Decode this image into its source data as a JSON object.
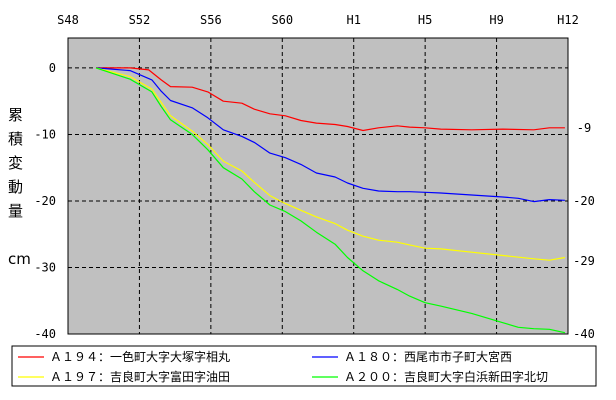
{
  "chart_data": {
    "type": "line",
    "x_ticks": [
      "S48",
      "S52",
      "S56",
      "S60",
      "H1",
      "H5",
      "H9",
      "H12"
    ],
    "y_ticks": [
      0,
      -10,
      -20,
      -30,
      -40
    ],
    "ylim": [
      -40,
      4.5
    ],
    "ylabel_chars": [
      "累",
      "積",
      "変",
      "動",
      "量"
    ],
    "yunit": "cm",
    "grid": true,
    "plot_bg": "#c0c0c0",
    "right_annotations": [
      {
        "y": -9,
        "label": "-9"
      },
      {
        "y": -20,
        "label": "-20"
      },
      {
        "y": -29,
        "label": "-29"
      },
      {
        "y": -40,
        "label": "-40"
      }
    ],
    "series": [
      {
        "name": "Ａ１９４：一色町大字大塚字相丸",
        "color": "#ff0000",
        "points": [
          [
            0.9,
            0
          ],
          [
            2.0,
            0.0
          ],
          [
            2.6,
            -0.3
          ],
          [
            3.0,
            -1.8
          ],
          [
            3.3,
            -2.8
          ],
          [
            4.0,
            -2.9
          ],
          [
            4.5,
            -3.6
          ],
          [
            5.0,
            -5.0
          ],
          [
            5.6,
            -5.3
          ],
          [
            6.0,
            -6.2
          ],
          [
            6.5,
            -6.9
          ],
          [
            7.0,
            -7.2
          ],
          [
            7.5,
            -7.9
          ],
          [
            8.0,
            -8.3
          ],
          [
            8.6,
            -8.5
          ],
          [
            9.0,
            -8.8
          ],
          [
            9.5,
            -9.4
          ],
          [
            10.0,
            -9.0
          ],
          [
            10.6,
            -8.7
          ],
          [
            11.0,
            -8.9
          ],
          [
            11.5,
            -9.0
          ],
          [
            12.0,
            -9.2
          ],
          [
            13.0,
            -9.3
          ],
          [
            14.0,
            -9.2
          ],
          [
            15.0,
            -9.3
          ],
          [
            15.5,
            -9.0
          ],
          [
            16.0,
            -9.0
          ]
        ]
      },
      {
        "name": "Ａ１８０：西尾市市子町大宮西",
        "color": "#0000ff",
        "points": [
          [
            0.9,
            0
          ],
          [
            2.0,
            -0.4
          ],
          [
            2.7,
            -1.8
          ],
          [
            3.0,
            -3.5
          ],
          [
            3.3,
            -4.9
          ],
          [
            4.0,
            -6.0
          ],
          [
            4.5,
            -7.5
          ],
          [
            5.0,
            -9.3
          ],
          [
            5.6,
            -10.3
          ],
          [
            6.0,
            -11.2
          ],
          [
            6.5,
            -12.8
          ],
          [
            7.0,
            -13.5
          ],
          [
            7.5,
            -14.5
          ],
          [
            8.0,
            -15.8
          ],
          [
            8.6,
            -16.4
          ],
          [
            9.0,
            -17.3
          ],
          [
            9.5,
            -18.1
          ],
          [
            10.0,
            -18.5
          ],
          [
            10.6,
            -18.6
          ],
          [
            11.0,
            -18.6
          ],
          [
            11.5,
            -18.7
          ],
          [
            12.0,
            -18.8
          ],
          [
            13.0,
            -19.1
          ],
          [
            14.0,
            -19.4
          ],
          [
            14.5,
            -19.6
          ],
          [
            15.0,
            -20.1
          ],
          [
            15.5,
            -19.8
          ],
          [
            16.0,
            -19.9
          ]
        ]
      },
      {
        "name": "Ａ１９７：吉良町大字富田字油田",
        "color": "#ffff00",
        "points": [
          [
            0.9,
            0
          ],
          [
            2.0,
            -1.3
          ],
          [
            2.7,
            -3.2
          ],
          [
            3.0,
            -5.2
          ],
          [
            3.3,
            -7.2
          ],
          [
            4.0,
            -9.5
          ],
          [
            4.5,
            -11.5
          ],
          [
            5.0,
            -14.0
          ],
          [
            5.6,
            -15.5
          ],
          [
            6.0,
            -17.2
          ],
          [
            6.5,
            -19.2
          ],
          [
            7.0,
            -20.4
          ],
          [
            7.5,
            -21.4
          ],
          [
            8.0,
            -22.4
          ],
          [
            8.6,
            -23.4
          ],
          [
            9.0,
            -24.4
          ],
          [
            9.5,
            -25.3
          ],
          [
            10.0,
            -25.9
          ],
          [
            10.6,
            -26.2
          ],
          [
            11.0,
            -26.6
          ],
          [
            11.5,
            -27.1
          ],
          [
            12.0,
            -27.2
          ],
          [
            13.0,
            -27.7
          ],
          [
            14.0,
            -28.2
          ],
          [
            15.0,
            -28.7
          ],
          [
            15.5,
            -28.9
          ],
          [
            16.0,
            -28.5
          ]
        ]
      },
      {
        "name": "Ａ２００：吉良町大字白浜新田字北切",
        "color": "#00ff00",
        "points": [
          [
            0.9,
            0
          ],
          [
            2.0,
            -1.7
          ],
          [
            2.7,
            -3.6
          ],
          [
            3.0,
            -5.8
          ],
          [
            3.3,
            -7.8
          ],
          [
            4.0,
            -10.0
          ],
          [
            4.5,
            -12.3
          ],
          [
            5.0,
            -15.0
          ],
          [
            5.6,
            -16.7
          ],
          [
            6.0,
            -18.6
          ],
          [
            6.5,
            -20.6
          ],
          [
            7.0,
            -21.6
          ],
          [
            7.5,
            -23.0
          ],
          [
            8.0,
            -24.7
          ],
          [
            8.6,
            -26.5
          ],
          [
            9.0,
            -28.5
          ],
          [
            9.5,
            -30.5
          ],
          [
            10.0,
            -32.0
          ],
          [
            10.6,
            -33.3
          ],
          [
            11.0,
            -34.3
          ],
          [
            11.5,
            -35.3
          ],
          [
            12.0,
            -35.8
          ],
          [
            13.0,
            -36.9
          ],
          [
            14.0,
            -38.3
          ],
          [
            14.5,
            -39.0
          ],
          [
            15.0,
            -39.2
          ],
          [
            15.5,
            -39.3
          ],
          [
            16.0,
            -39.8
          ]
        ]
      }
    ]
  }
}
